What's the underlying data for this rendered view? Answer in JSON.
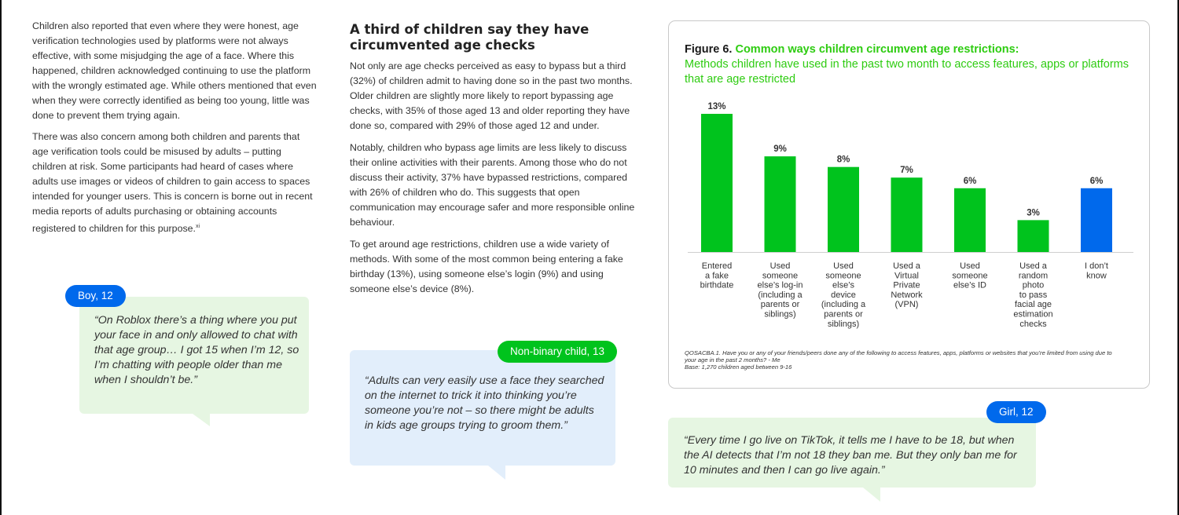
{
  "left_column": {
    "para1": "Children also reported that even where they were honest, age verification technologies used by platforms were not always effective, with some misjudging the age of a face. Where this happened, children acknowledged continuing to use the platform with the wrongly estimated age. While others mentioned that even when they were correctly identified as being too young, little was done to prevent them trying again.",
    "para2": "There was also concern among both children and parents that age verification tools could be misused by adults – putting children at risk. Some participants had heard of cases where adults use images or videos of children to gain access to spaces intended for younger users. This is concern is borne out in recent media reports of adults purchasing or obtaining accounts registered to children for this purpose.",
    "para2_footnote": "xi"
  },
  "middle_column": {
    "heading": "A third of children say they have circumvented age checks",
    "para1": "Not only are age checks perceived as easy to bypass but a third (32%) of children admit to having done so in the past two months. Older children are slightly more likely to report bypassing age checks, with 35% of those aged 13 and older reporting they have done so, compared with 29% of those aged 12 and under.",
    "para2": "Notably, children who bypass age limits are less likely to discuss their online activities with their parents. Among those who do not discuss their activity, 37% have bypassed restrictions, compared with 26% of children who do. This suggests that open communication may encourage safer and more responsible online behaviour.",
    "para3": "To get around age restrictions, children use a wide variety of methods. With some of the most common being entering a fake birthday (13%), using someone else’s login (9%) and using someone else’s device (8%)."
  },
  "quotes": [
    {
      "speaker": "Boy, 12",
      "text": "“On Roblox there’s a thing where you put your face in and only allowed to chat with that age group… I got 15 when I’m 12, so I’m chatting with people older than me when I shouldn’t be.”"
    },
    {
      "speaker": "Non-binary child, 13",
      "text": "“Adults can very easily use a face they searched on the internet to trick it into thinking you’re someone you’re not – so there might be adults in kids age groups trying to groom them.”"
    },
    {
      "speaker": "Girl, 12",
      "text": "“Every time I go live on TikTok, it tells me I have to be 18, but when the AI detects that I’m not 18 they ban me. But they only ban me for 10 minutes and then I can go live again.”"
    }
  ],
  "figure": {
    "label": "Figure 6.",
    "title": "Common ways children circumvent age restrictions:",
    "subtitle": "Methods children have used in the past two month to access features, apps or platforms that are age restricted",
    "note_line1": "QOSACBA.1. Have you or any of your friends/peers done any of the following to access features, apps, platforms or websites that you’re limited from using due to your age in the past 2 months? - Me",
    "note_line2": "Base: 1,270 children aged between 9-16"
  },
  "chart_data": {
    "type": "bar",
    "title": "Common ways children circumvent age restrictions:",
    "subtitle": "Methods children have used in the past two month to access features, apps or platforms that are age restricted",
    "categories": [
      [
        "Entered",
        "a fake",
        "birthdate"
      ],
      [
        "Used",
        "someone",
        "else’s log-in",
        "(including a",
        "parents or",
        "siblings)"
      ],
      [
        "Used",
        "someone",
        "else’s",
        "device",
        "(including a",
        "parents or",
        "siblings)"
      ],
      [
        "Used a",
        "Virtual",
        "Private",
        "Network",
        "(VPN)"
      ],
      [
        "Used",
        "someone",
        "else’s ID"
      ],
      [
        "Used a",
        "random",
        "photo",
        "to pass",
        "facial age",
        "estimation",
        "checks"
      ],
      [
        "I don’t",
        "know"
      ]
    ],
    "values": [
      13,
      9,
      8,
      7,
      6,
      3,
      6
    ],
    "value_labels": [
      "13%",
      "9%",
      "8%",
      "7%",
      "6%",
      "3%",
      "6%"
    ],
    "unit": "%",
    "ylim": [
      0,
      13
    ],
    "grid": false,
    "colors": [
      "#00c31d",
      "#00c31d",
      "#00c31d",
      "#00c31d",
      "#00c31d",
      "#00c31d",
      "#0069ec"
    ]
  }
}
